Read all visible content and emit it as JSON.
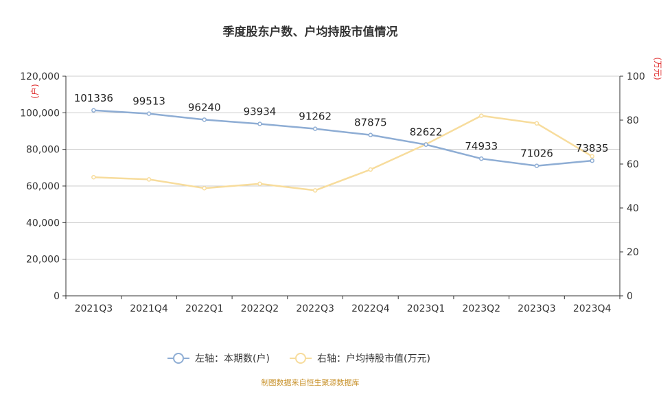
{
  "chart_data": {
    "type": "line",
    "title": "季度股东户数、户均持股市值情况",
    "categories": [
      "2021Q3",
      "2021Q4",
      "2022Q1",
      "2022Q2",
      "2022Q3",
      "2022Q4",
      "2023Q1",
      "2023Q2",
      "2023Q3",
      "2023Q4"
    ],
    "series": [
      {
        "name": "左轴：本期数(户)",
        "axis": "left",
        "color": "#8eadd4",
        "values": [
          101336,
          99513,
          96240,
          93934,
          91262,
          87875,
          82622,
          74933,
          71026,
          73835
        ],
        "data_labels": [
          "101336",
          "99513",
          "96240",
          "93934",
          "91262",
          "87875",
          "82622",
          "74933",
          "71026",
          "73835"
        ]
      },
      {
        "name": "右轴：户均持股市值(万元)",
        "axis": "right",
        "color": "#f7dc9c",
        "values": [
          54,
          53,
          49,
          51,
          48,
          57.5,
          69,
          82,
          78.5,
          63.5
        ]
      }
    ],
    "y_left": {
      "unit": "(户)",
      "ylim": [
        0,
        120000
      ],
      "ticks": [
        0,
        20000,
        40000,
        60000,
        80000,
        100000,
        120000
      ],
      "tick_labels": [
        "0",
        "20,000",
        "40,000",
        "60,000",
        "80,000",
        "100,000",
        "120,000"
      ]
    },
    "y_right": {
      "unit": "(万元)",
      "ylim": [
        0,
        100
      ],
      "ticks": [
        0,
        20,
        40,
        60,
        80,
        100
      ],
      "tick_labels": [
        "0",
        "20",
        "40",
        "60",
        "80",
        "100"
      ]
    },
    "grid": true,
    "legend_position": "bottom-center",
    "source": "制图数据来自恒生聚源数据库",
    "axis_color": "#333333",
    "grid_color": "#cccccc"
  }
}
